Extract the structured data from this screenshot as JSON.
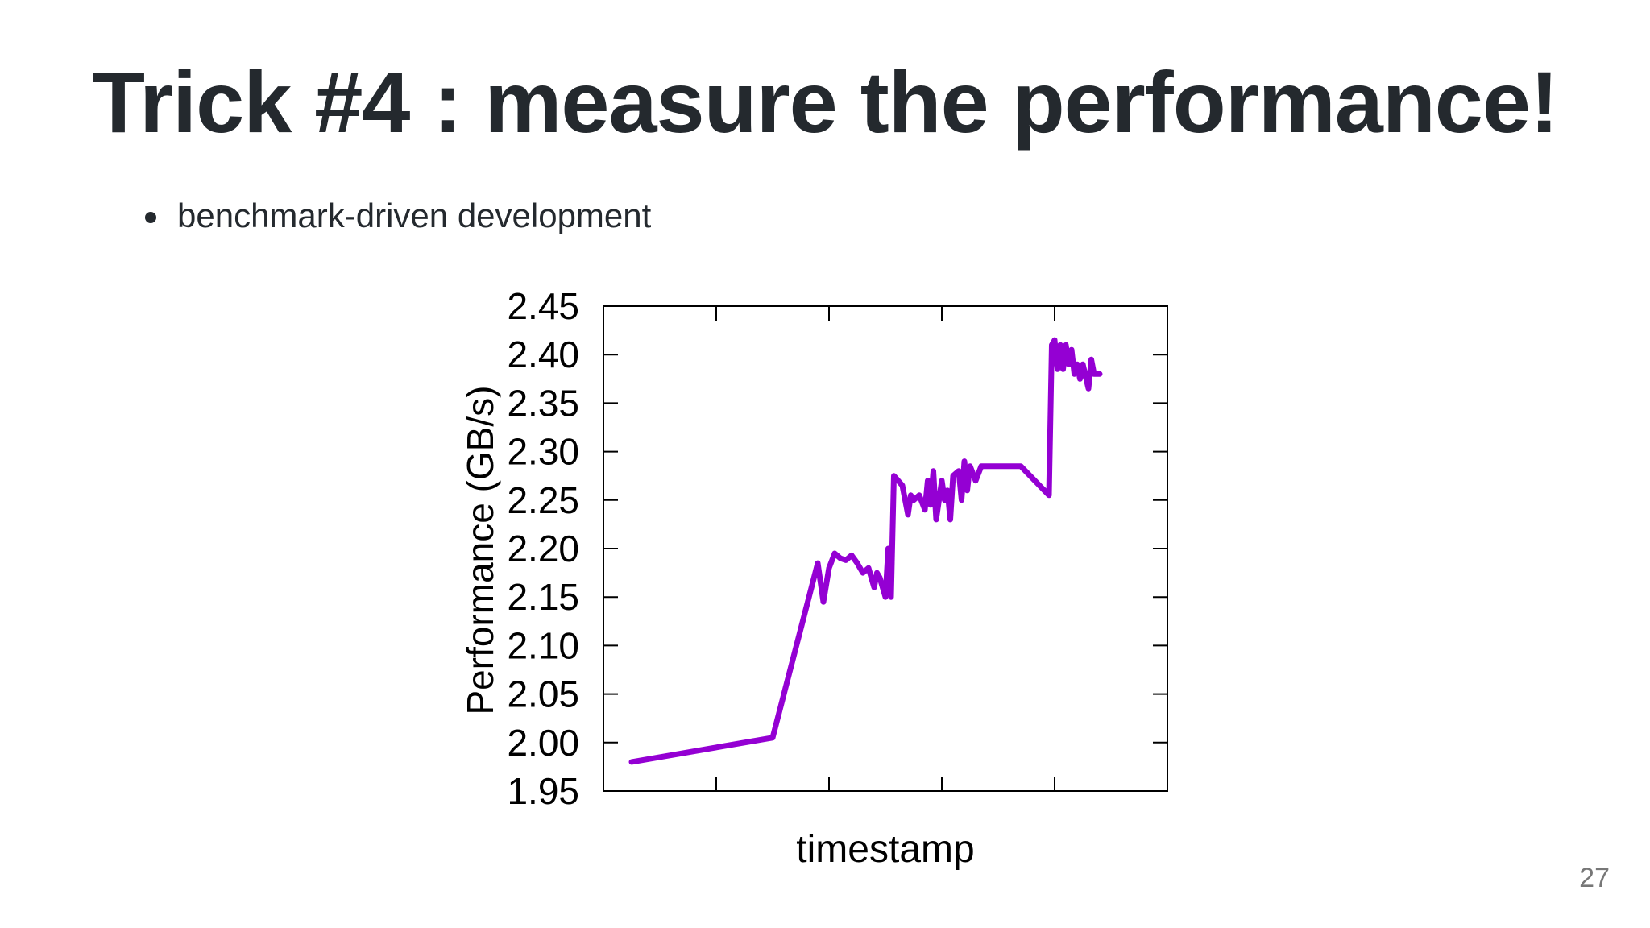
{
  "slide": {
    "title": "Trick #4 : measure the performance!",
    "bullets": [
      "benchmark-driven development"
    ],
    "page_number": "27"
  },
  "chart_data": {
    "type": "line",
    "xlabel": "timestamp",
    "ylabel": "Performance (GB/s)",
    "ylim": [
      1.95,
      2.45
    ],
    "yticks": [
      "1.95",
      "2.00",
      "2.05",
      "2.10",
      "2.15",
      "2.20",
      "2.25",
      "2.30",
      "2.35",
      "2.40",
      "2.45"
    ],
    "xlim": [
      0,
      100
    ],
    "x_tick_labels_shown": false,
    "grid": false,
    "legend": "none",
    "line_color": "#9400d3",
    "series": [
      {
        "x": [
          5,
          30,
          38,
          39,
          40,
          41,
          42,
          43,
          44,
          45,
          46,
          47,
          48,
          48.5,
          49,
          50,
          50.5,
          51,
          51.5,
          51.5,
          53,
          54,
          54.5,
          55,
          56,
          57,
          57.5,
          58,
          58.5,
          59,
          60,
          60.5,
          61,
          61.5,
          62,
          63,
          63.5,
          64,
          64.5,
          65,
          66,
          67,
          70,
          74,
          79,
          79.5,
          80,
          80.5,
          81,
          81.5,
          82,
          82.5,
          83,
          83.5,
          84,
          84.5,
          85,
          86,
          86.5,
          87,
          88
        ],
        "y": [
          1.98,
          2.005,
          2.185,
          2.145,
          2.18,
          2.195,
          2.19,
          2.188,
          2.193,
          2.185,
          2.175,
          2.18,
          2.16,
          2.175,
          2.17,
          2.15,
          2.2,
          2.15,
          2.275,
          2.275,
          2.265,
          2.235,
          2.255,
          2.25,
          2.255,
          2.24,
          2.27,
          2.245,
          2.28,
          2.23,
          2.27,
          2.25,
          2.26,
          2.23,
          2.275,
          2.28,
          2.25,
          2.29,
          2.26,
          2.285,
          2.27,
          2.285,
          2.285,
          2.285,
          2.255,
          2.41,
          2.415,
          2.385,
          2.41,
          2.385,
          2.41,
          2.39,
          2.405,
          2.38,
          2.39,
          2.375,
          2.39,
          2.365,
          2.395,
          2.38,
          2.38
        ]
      }
    ]
  }
}
